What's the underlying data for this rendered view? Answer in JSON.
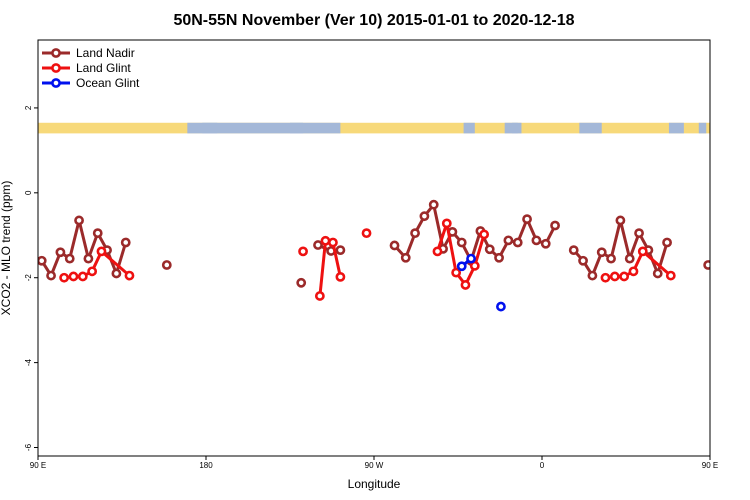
{
  "chart_data": {
    "type": "line",
    "title": "50N-55N November (Ver 10)   2015-01-01 to 2020-12-18",
    "xlabel": "Longitude",
    "ylabel": "XCO2 - MLO trend (ppm)",
    "xlim": [
      90,
      450
    ],
    "ylim": [
      -6.2,
      3.6
    ],
    "x_ticks": [
      {
        "value": 90,
        "label": "90 E"
      },
      {
        "value": 180,
        "label": "180"
      },
      {
        "value": 270,
        "label": "90 W"
      },
      {
        "value": 360,
        "label": "0"
      },
      {
        "value": 450,
        "label": "90 E"
      },
      {
        "value": 540,
        "label": "180"
      }
    ],
    "y_ticks": [
      {
        "value": 2,
        "label": "2"
      },
      {
        "value": 0,
        "label": "0"
      },
      {
        "value": -2,
        "label": "-2"
      },
      {
        "value": -4,
        "label": "-4"
      },
      {
        "value": -6,
        "label": "-6"
      }
    ],
    "legend_position": "top-left",
    "land_ocean_band": {
      "y_top": 1.65,
      "y_bottom": 1.4,
      "land_color": "#f7d97a",
      "ocean_color": "#a4b8d8"
    },
    "series": [
      {
        "name": "Land Nadir",
        "color": "#9b2a2a",
        "segments": [
          [
            [
              92,
              -1.6
            ],
            [
              97,
              -1.95
            ],
            [
              102,
              -1.4
            ],
            [
              107,
              -1.55
            ],
            [
              112,
              -0.65
            ],
            [
              117,
              -1.55
            ],
            [
              122,
              -0.95
            ],
            [
              127,
              -1.35
            ],
            [
              132,
              -1.9
            ],
            [
              137,
              -1.17
            ]
          ],
          [
            [
              159,
              -1.7
            ]
          ],
          [
            [
              231,
              -2.12
            ]
          ],
          [
            [
              240,
              -1.23
            ],
            [
              247,
              -1.37
            ],
            [
              252,
              -1.35
            ]
          ],
          [
            [
              281,
              -1.24
            ],
            [
              287,
              -1.53
            ],
            [
              292,
              -0.95
            ],
            [
              297,
              -0.55
            ],
            [
              302,
              -0.28
            ],
            [
              307,
              -1.32
            ],
            [
              312,
              -0.92
            ],
            [
              317,
              -1.17
            ],
            [
              322,
              -1.6
            ],
            [
              327,
              -0.9
            ],
            [
              332,
              -1.33
            ],
            [
              337,
              -1.53
            ],
            [
              342,
              -1.12
            ],
            [
              347,
              -1.17
            ],
            [
              352,
              -0.62
            ],
            [
              357,
              -1.12
            ],
            [
              362,
              -1.2
            ],
            [
              367,
              -0.77
            ]
          ],
          [
            [
              377,
              -1.35
            ],
            [
              382,
              -1.6
            ],
            [
              387,
              -1.95
            ],
            [
              392,
              -1.4
            ],
            [
              397,
              -1.55
            ],
            [
              402,
              -0.65
            ],
            [
              407,
              -1.55
            ],
            [
              412,
              -0.95
            ],
            [
              417,
              -1.35
            ],
            [
              422,
              -1.9
            ],
            [
              427,
              -1.17
            ]
          ],
          [
            [
              449,
              -1.7
            ]
          ]
        ]
      },
      {
        "name": "Land Glint",
        "color": "#ee1111",
        "segments": [
          [
            [
              104,
              -2.0
            ],
            [
              109,
              -1.97
            ],
            [
              114,
              -1.97
            ],
            [
              119,
              -1.85
            ],
            [
              124,
              -1.38
            ],
            [
              139,
              -1.95
            ]
          ],
          [
            [
              232,
              -1.38
            ]
          ],
          [
            [
              241,
              -2.43
            ],
            [
              244,
              -1.13
            ],
            [
              248,
              -1.17
            ],
            [
              252,
              -1.98
            ]
          ],
          [
            [
              266,
              -0.95
            ]
          ],
          [
            [
              304,
              -1.38
            ],
            [
              309,
              -0.72
            ],
            [
              314,
              -1.88
            ],
            [
              319,
              -2.17
            ],
            [
              324,
              -1.72
            ],
            [
              329,
              -0.98
            ]
          ],
          [
            [
              394,
              -2.0
            ],
            [
              399,
              -1.97
            ],
            [
              404,
              -1.97
            ],
            [
              409,
              -1.85
            ],
            [
              414,
              -1.38
            ],
            [
              429,
              -1.95
            ]
          ]
        ]
      },
      {
        "name": "Ocean Glint",
        "color": "#0011ee",
        "segments": [
          [
            [
              317,
              -1.73
            ],
            [
              322,
              -1.55
            ]
          ],
          [
            [
              338,
              -2.68
            ]
          ]
        ]
      }
    ]
  }
}
